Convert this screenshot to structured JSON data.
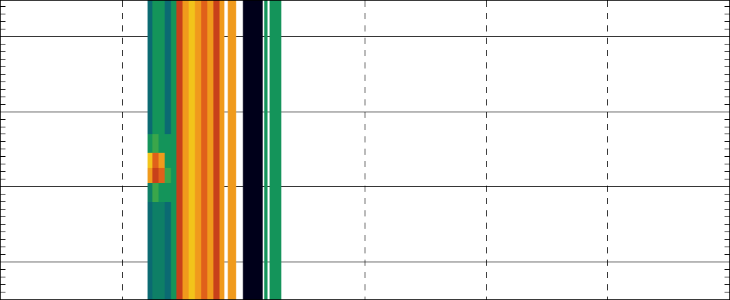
{
  "chart_data": {
    "type": "heatmap",
    "x": [
      1.21,
      1.25,
      1.3,
      1.35,
      1.4,
      1.445,
      1.5,
      1.55,
      1.6,
      1.65,
      1.7,
      1.75,
      1.8,
      1.84,
      1.87,
      1.94,
      1.995,
      2.157,
      2.17,
      2.2,
      2.215,
      2.31
    ],
    "y": [
      0,
      1.3,
      1.55,
      1.75,
      1.95,
      2.2,
      3.98
    ],
    "cells": [
      [
        3,
        4,
        4,
        3,
        5,
        10,
        8,
        7,
        8,
        9,
        8,
        10,
        8,
        null,
        8,
        null,
        0,
        null,
        5,
        null,
        5
      ],
      [
        4,
        6,
        5,
        5,
        5,
        10,
        8,
        7,
        8,
        9,
        8,
        10,
        8,
        null,
        8,
        null,
        0,
        null,
        5,
        null,
        5
      ],
      [
        8,
        10,
        9,
        6,
        5,
        10,
        8,
        7,
        8,
        9,
        8,
        10,
        8,
        null,
        8,
        null,
        0,
        null,
        5,
        null,
        5
      ],
      [
        7,
        9,
        8,
        5,
        5,
        10,
        8,
        7,
        8,
        9,
        8,
        10,
        8,
        null,
        8,
        null,
        0,
        null,
        5,
        null,
        5
      ],
      [
        5,
        6,
        5,
        5,
        5,
        10,
        8,
        7,
        8,
        9,
        8,
        10,
        8,
        null,
        8,
        null,
        0,
        null,
        5,
        null,
        5
      ],
      [
        3,
        5,
        5,
        3,
        5,
        10,
        8,
        7,
        8,
        9,
        8,
        10,
        8,
        null,
        8,
        null,
        0,
        null,
        5,
        null,
        5
      ]
    ],
    "zlim": [
      0,
      10
    ],
    "colors": [
      "#00001a",
      "#02203a",
      "#0a4a6a",
      "#0b6a72",
      "#0e7f66",
      "#14945a",
      "#3aa64a",
      "#f2c41a",
      "#f09a1c",
      "#e0601a",
      "#c8401a"
    ],
    "xlim": [
      0,
      6
    ],
    "xticks": [
      0,
      1,
      2,
      3,
      4,
      5,
      6
    ],
    "ylim": [
      0,
      3.98
    ],
    "yticks": [
      0.5,
      1.5,
      2.5,
      3.5
    ],
    "grid": true,
    "tick_labels": false
  }
}
